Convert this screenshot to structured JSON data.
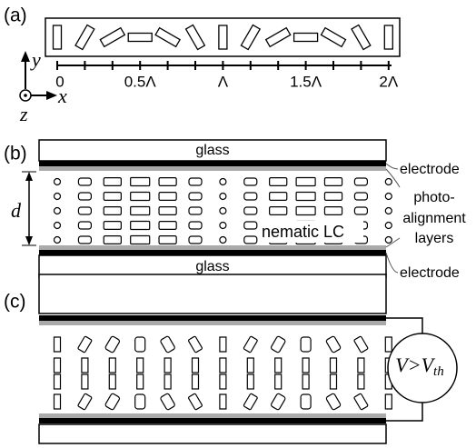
{
  "panel_a": {
    "label": "(a)",
    "axes": {
      "y": "y",
      "x": "x",
      "z": "z"
    },
    "ticks": [
      "0",
      "0.5Λ",
      "Λ",
      "1.5Λ",
      "2Λ"
    ]
  },
  "panel_b": {
    "label": "(b)",
    "top_glass": "glass",
    "bottom_glass": "glass",
    "thickness": "d",
    "medium": "nematic LC",
    "top_electrode": "electrode",
    "bottom_electrode": "electrode",
    "alignment_layers": [
      "photo-",
      "alignment",
      "layers"
    ]
  },
  "panel_c": {
    "label": "(c)",
    "voltage": "V>V",
    "voltage_sub": "th"
  }
}
